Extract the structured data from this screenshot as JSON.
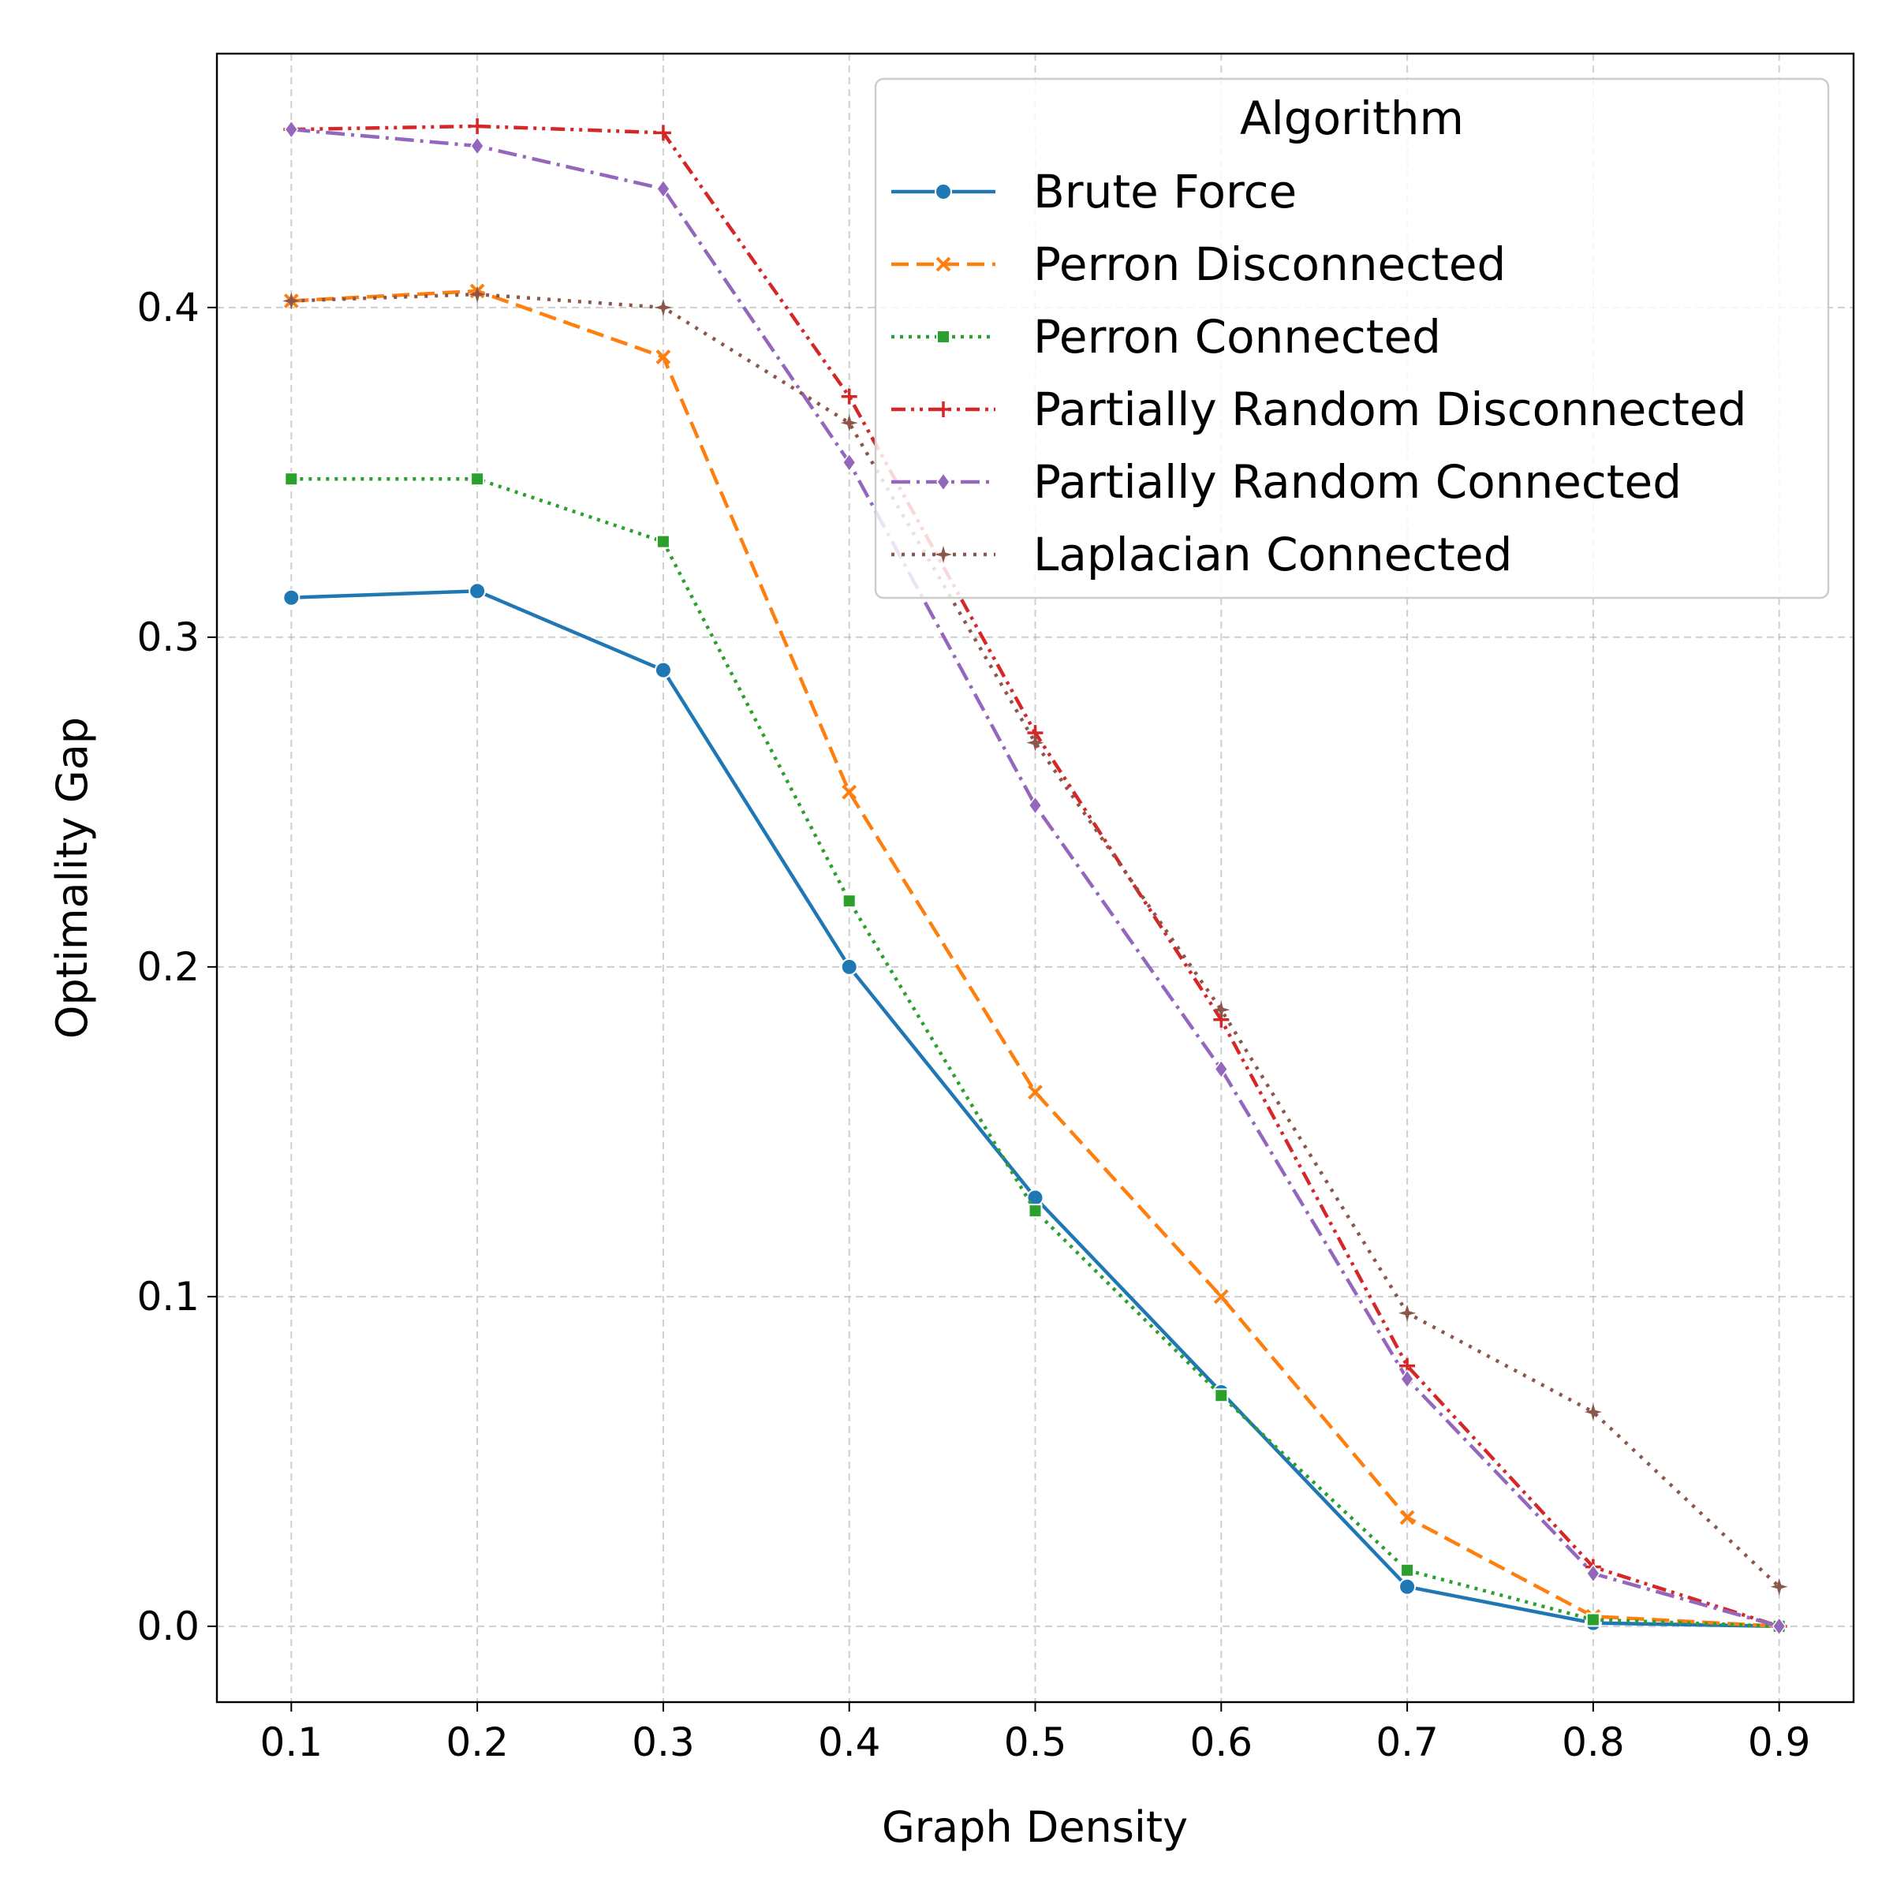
{
  "chart_data": {
    "type": "line",
    "xlabel": "Graph Density",
    "ylabel": "Optimality Gap",
    "x": [
      0.1,
      0.2,
      0.3,
      0.4,
      0.5,
      0.6,
      0.7,
      0.8,
      0.9
    ],
    "xlim": [
      0.06,
      0.94
    ],
    "ylim": [
      -0.023,
      0.477
    ],
    "xticks": [
      "0.1",
      "0.2",
      "0.3",
      "0.4",
      "0.5",
      "0.6",
      "0.7",
      "0.8",
      "0.9"
    ],
    "yticks": [
      "0.0",
      "0.1",
      "0.2",
      "0.3",
      "0.4"
    ],
    "grid": true,
    "legend": {
      "title": "Algorithm",
      "placement": "upper-right"
    },
    "series": [
      {
        "name": "Brute Force",
        "color": "#1f77b4",
        "dash": "solid",
        "marker": "circle",
        "values": [
          0.312,
          0.314,
          0.29,
          0.2,
          0.13,
          0.071,
          0.012,
          0.001,
          0.0
        ]
      },
      {
        "name": "Perron Disconnected",
        "color": "#ff7f0e",
        "dash": "dashed",
        "marker": "x",
        "values": [
          0.402,
          0.405,
          0.385,
          0.253,
          0.162,
          0.1,
          0.033,
          0.003,
          0.0
        ]
      },
      {
        "name": "Perron Connected",
        "color": "#2ca02c",
        "dash": "dotted",
        "marker": "square",
        "values": [
          0.348,
          0.348,
          0.329,
          0.22,
          0.126,
          0.07,
          0.017,
          0.002,
          0.0
        ]
      },
      {
        "name": "Partially Random Disconnected",
        "color": "#d62728",
        "dash": "dashdotdot",
        "marker": "plus",
        "values": [
          0.454,
          0.455,
          0.453,
          0.373,
          0.271,
          0.184,
          0.079,
          0.018,
          0.0
        ]
      },
      {
        "name": "Partially Random Connected",
        "color": "#9467bd",
        "dash": "dashdot",
        "marker": "diamond",
        "values": [
          0.454,
          0.449,
          0.436,
          0.353,
          0.249,
          0.169,
          0.075,
          0.016,
          0.0
        ]
      },
      {
        "name": "Laplacian Connected",
        "color": "#8c564b",
        "dash": "densedot",
        "marker": "star",
        "values": [
          0.402,
          0.404,
          0.4,
          0.365,
          0.268,
          0.187,
          0.095,
          0.065,
          0.012
        ]
      }
    ]
  }
}
